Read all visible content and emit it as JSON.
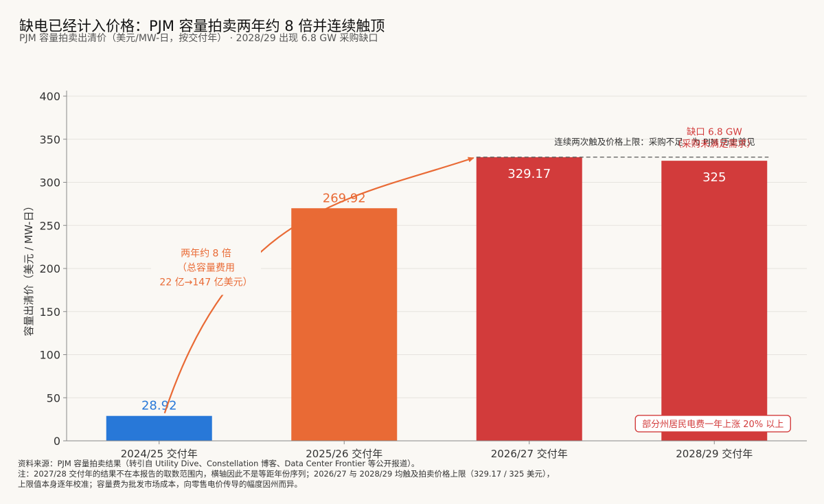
{
  "title": "缺电已经计入价格：PJM 容量拍卖两年约 8 倍并连续触顶",
  "subtitle": "PJM 容量拍卖出清价（美元/MW-日，按交付年） · 2028/29 出现 6.8 GW 采购缺口",
  "colors": {
    "blue": "#2878d8",
    "orange": "#e96a35",
    "red": "#d23b3b",
    "grid": "#e6e3de",
    "background": "#faf8f4"
  },
  "chart_data": {
    "type": "bar",
    "ylabel": "容量出清价（美元 / MW-日）",
    "ylim": [
      0,
      400
    ],
    "yticks": [
      0,
      50,
      100,
      150,
      200,
      250,
      300,
      350,
      400
    ],
    "categories": [
      "2024/25 交付年",
      "2025/26 交付年",
      "2026/27 交付年",
      "2028/29 交付年"
    ],
    "values": [
      28.92,
      269.92,
      329.17,
      325
    ],
    "value_labels": [
      "28.92",
      "269.92",
      "329.17",
      "325"
    ],
    "bar_colors": [
      "#2878d8",
      "#e96a35",
      "#d23b3b",
      "#d23b3b"
    ],
    "grid": true,
    "cap_line_value": 329.17,
    "annotations": {
      "growth_lines": [
        "两年约 8 倍",
        "（总容量费用",
        "22 亿→147 亿美元）"
      ],
      "cap_note": "连续两次触及价格上限：采购不足，为 PJM 历史首见",
      "shortfall_lines": [
        "缺口 6.8 GW",
        "（采购未满足需求）"
      ],
      "bill_note": "部分州居民电费一年上涨 20% 以上"
    }
  },
  "footer": {
    "source_label": "资料来源：",
    "source": "PJM 容量拍卖结果（转引自 Utility Dive、Constellation 博客、Data Center Frontier 等公开报道）。",
    "note_label": "注：",
    "note_line1": "2027/28 交付年的结果不在本报告的取数范围内，横轴因此不是等距年份序列；2026/27 与 2028/29 均触及拍卖价格上限（329.17 / 325 美元），",
    "note_line2": "上限值本身逐年校准；容量费为批发市场成本，向零售电价传导的幅度因州而异。"
  }
}
